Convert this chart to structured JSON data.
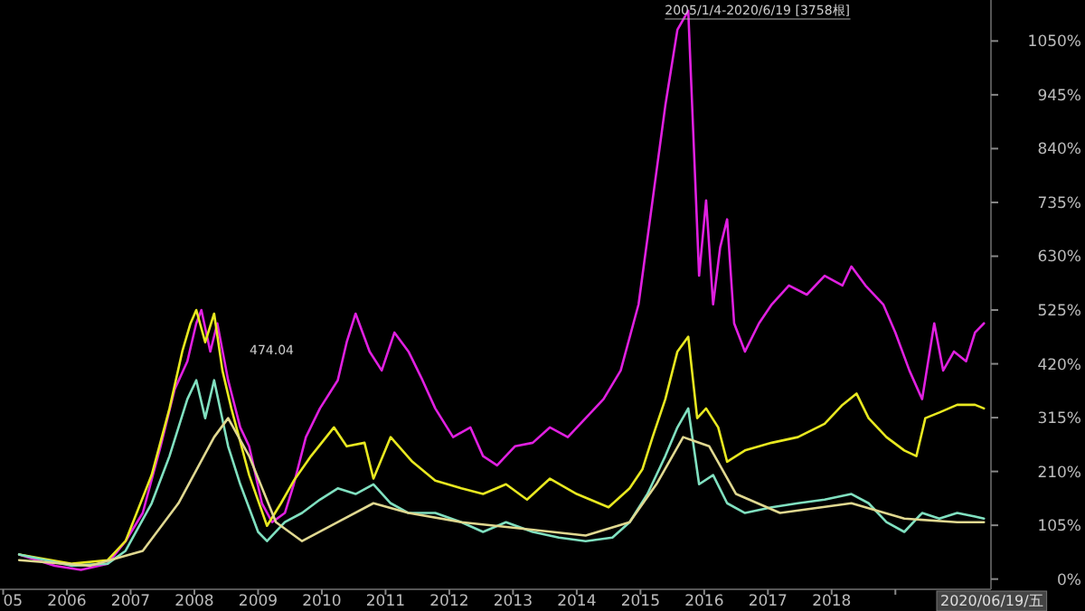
{
  "chart_data": {
    "type": "line",
    "xlim": [
      2004.95,
      2020.5
    ],
    "ylim": [
      -20,
      1130
    ],
    "xticks": [
      {
        "value": 2005,
        "label": "05"
      },
      2006,
      2007,
      2008,
      2009,
      2010,
      2011,
      2012,
      2013,
      2014,
      2015,
      2016,
      2017,
      2018,
      {
        "value": 2019,
        "label": null
      }
    ],
    "yticks": [
      {
        "value": 0,
        "label": "0%"
      },
      {
        "value": 105,
        "label": "105%"
      },
      {
        "value": 210,
        "label": "210%"
      },
      {
        "value": 315,
        "label": "315%"
      },
      {
        "value": 420,
        "label": "420%"
      },
      {
        "value": 525,
        "label": "525%"
      },
      {
        "value": 630,
        "label": "630%"
      },
      {
        "value": 735,
        "label": "735%"
      },
      {
        "value": 840,
        "label": "840%"
      },
      {
        "value": 945,
        "label": "945%"
      },
      {
        "value": 1050,
        "label": "1050%"
      }
    ],
    "annotations": [
      "2005/1/4-2020/6/19 [3758根]",
      "2020/06/19/五",
      "474.04"
    ],
    "series": [
      {
        "color": "#e020e0",
        "x": [
          2005.25,
          2005.81,
          2006.22,
          2006.64,
          2006.92,
          2007.19,
          2007.47,
          2007.69,
          2007.89,
          2008.03,
          2008.11,
          2008.25,
          2008.36,
          2008.53,
          2008.72,
          2008.86,
          2009.06,
          2009.22,
          2009.42,
          2009.56,
          2009.75,
          2009.97,
          2010.25,
          2010.39,
          2010.53,
          2010.75,
          2010.94,
          2011.14,
          2011.36,
          2011.58,
          2011.78,
          2012.06,
          2012.33,
          2012.53,
          2012.75,
          2013.03,
          2013.31,
          2013.58,
          2013.86,
          2014.14,
          2014.42,
          2014.69,
          2014.97,
          2015.19,
          2015.39,
          2015.58,
          2015.75,
          2015.86,
          2015.92,
          2016.03,
          2016.14,
          2016.25,
          2016.36,
          2016.47,
          2016.64,
          2016.86,
          2017.06,
          2017.33,
          2017.61,
          2017.89,
          2018.17,
          2018.31,
          2018.53,
          2018.81,
          2019.0,
          2019.22,
          2019.42,
          2019.61,
          2019.75,
          2019.92,
          2020.11,
          2020.25,
          2020.39
        ],
        "values": [
          48,
          26,
          18,
          30,
          74,
          129,
          259,
          370,
          425,
          499,
          525,
          444,
          499,
          388,
          296,
          259,
          148,
          111,
          129,
          185,
          277,
          333,
          388,
          462,
          518,
          444,
          407,
          481,
          444,
          388,
          333,
          277,
          296,
          240,
          222,
          259,
          266,
          296,
          277,
          314,
          351,
          407,
          536,
          739,
          924,
          1072,
          1109,
          776,
          592,
          739,
          536,
          647,
          702,
          499,
          444,
          499,
          536,
          573,
          555,
          592,
          573,
          610,
          573,
          536,
          481,
          407,
          351,
          499,
          407,
          444,
          425,
          481,
          499
        ]
      },
      {
        "color": "#e8e820",
        "x": [
          2005.25,
          2006.08,
          2006.64,
          2006.92,
          2007.33,
          2007.61,
          2007.81,
          2007.94,
          2008.03,
          2008.17,
          2008.31,
          2008.44,
          2008.58,
          2008.86,
          2009.14,
          2009.36,
          2009.56,
          2009.83,
          2010.19,
          2010.39,
          2010.67,
          2010.81,
          2011.08,
          2011.42,
          2011.78,
          2012.19,
          2012.53,
          2012.89,
          2013.22,
          2013.58,
          2014.0,
          2014.5,
          2014.83,
          2015.03,
          2015.19,
          2015.39,
          2015.58,
          2015.75,
          2015.89,
          2016.03,
          2016.22,
          2016.36,
          2016.64,
          2017.06,
          2017.47,
          2017.89,
          2018.17,
          2018.39,
          2018.58,
          2018.86,
          2019.14,
          2019.33,
          2019.47,
          2019.69,
          2019.97,
          2020.25,
          2020.39
        ],
        "values": [
          48,
          30,
          37,
          74,
          203,
          333,
          444,
          499,
          525,
          462,
          518,
          407,
          333,
          203,
          104,
          148,
          192,
          240,
          296,
          259,
          266,
          196,
          277,
          229,
          192,
          177,
          166,
          185,
          155,
          196,
          166,
          140,
          177,
          214,
          277,
          351,
          444,
          473,
          314,
          333,
          296,
          229,
          251,
          266,
          277,
          303,
          340,
          362,
          314,
          277,
          251,
          240,
          314,
          325,
          340,
          340,
          333
        ]
      },
      {
        "color": "#80e0c0",
        "x": [
          2005.25,
          2006.08,
          2006.64,
          2006.92,
          2007.33,
          2007.61,
          2007.89,
          2008.03,
          2008.17,
          2008.31,
          2008.53,
          2008.72,
          2009.0,
          2009.14,
          2009.42,
          2009.69,
          2009.97,
          2010.25,
          2010.53,
          2010.81,
          2011.08,
          2011.36,
          2011.78,
          2012.19,
          2012.53,
          2012.89,
          2013.31,
          2013.72,
          2014.14,
          2014.56,
          2014.83,
          2015.11,
          2015.39,
          2015.58,
          2015.75,
          2015.92,
          2016.14,
          2016.36,
          2016.64,
          2017.06,
          2017.47,
          2017.89,
          2018.31,
          2018.58,
          2018.86,
          2019.14,
          2019.42,
          2019.69,
          2019.97,
          2020.25,
          2020.39
        ],
        "values": [
          48,
          26,
          30,
          55,
          148,
          240,
          351,
          388,
          314,
          388,
          259,
          185,
          92,
          74,
          111,
          129,
          155,
          177,
          166,
          185,
          148,
          129,
          129,
          111,
          92,
          111,
          92,
          81,
          74,
          81,
          111,
          166,
          240,
          296,
          333,
          185,
          203,
          148,
          129,
          140,
          148,
          155,
          166,
          148,
          111,
          92,
          129,
          118,
          129,
          122,
          118
        ]
      },
      {
        "color": "#e0d890",
        "x": [
          2005.25,
          2006.36,
          2007.19,
          2007.75,
          2008.31,
          2008.53,
          2008.86,
          2009.28,
          2009.69,
          2010.25,
          2010.81,
          2011.36,
          2012.19,
          2013.03,
          2014.14,
          2014.83,
          2015.25,
          2015.67,
          2016.08,
          2016.5,
          2017.19,
          2018.31,
          2019.14,
          2019.97,
          2020.39
        ],
        "values": [
          37,
          26,
          55,
          148,
          277,
          314,
          240,
          111,
          74,
          111,
          148,
          129,
          111,
          100,
          85,
          111,
          185,
          277,
          259,
          166,
          129,
          148,
          118,
          111,
          111
        ]
      }
    ]
  }
}
